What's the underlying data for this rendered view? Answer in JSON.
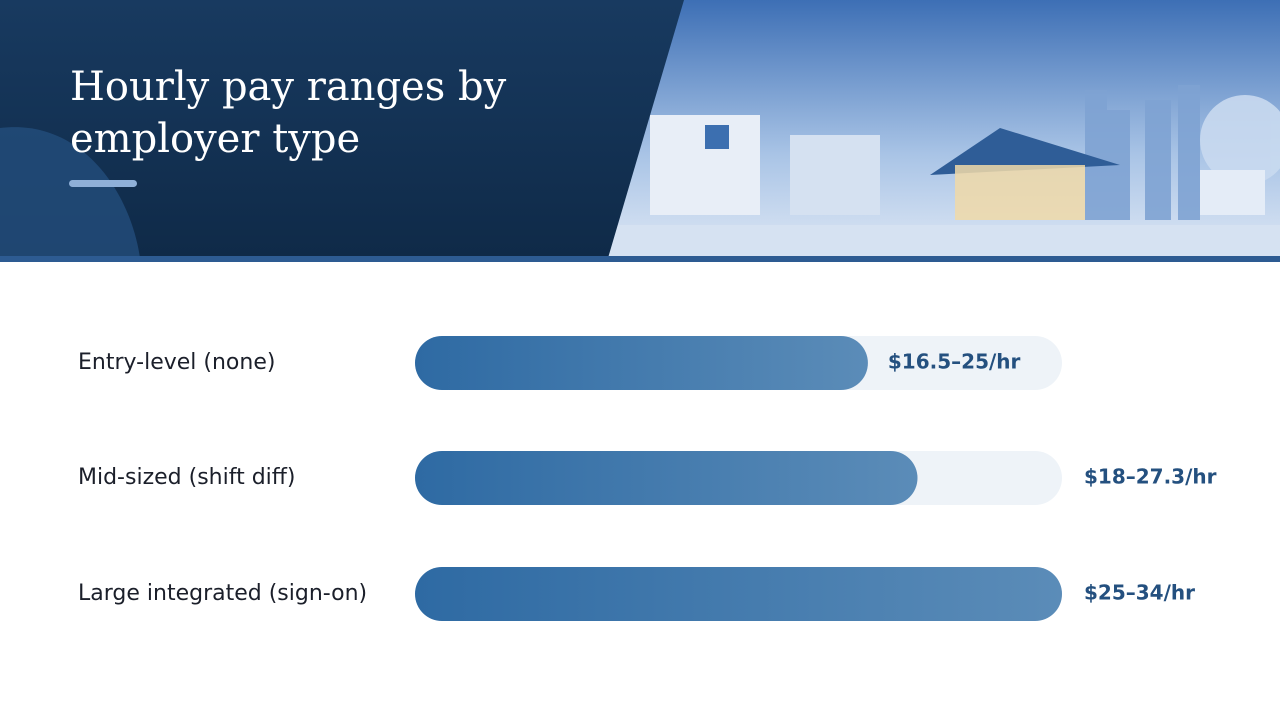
{
  "chart_data": {
    "type": "bar",
    "orientation": "horizontal",
    "title": "Hourly pay ranges by employer type",
    "categories": [
      "Entry-level (none)",
      "Mid-sized (shift diff)",
      "Large integrated (sign-on)"
    ],
    "values": [
      25,
      27.3,
      34
    ],
    "value_labels": [
      "$16.5–25/hr",
      "$18–27.3/hr",
      "$25–34/hr"
    ],
    "xlim": [
      4,
      34
    ],
    "color": "#2e6aa3"
  }
}
